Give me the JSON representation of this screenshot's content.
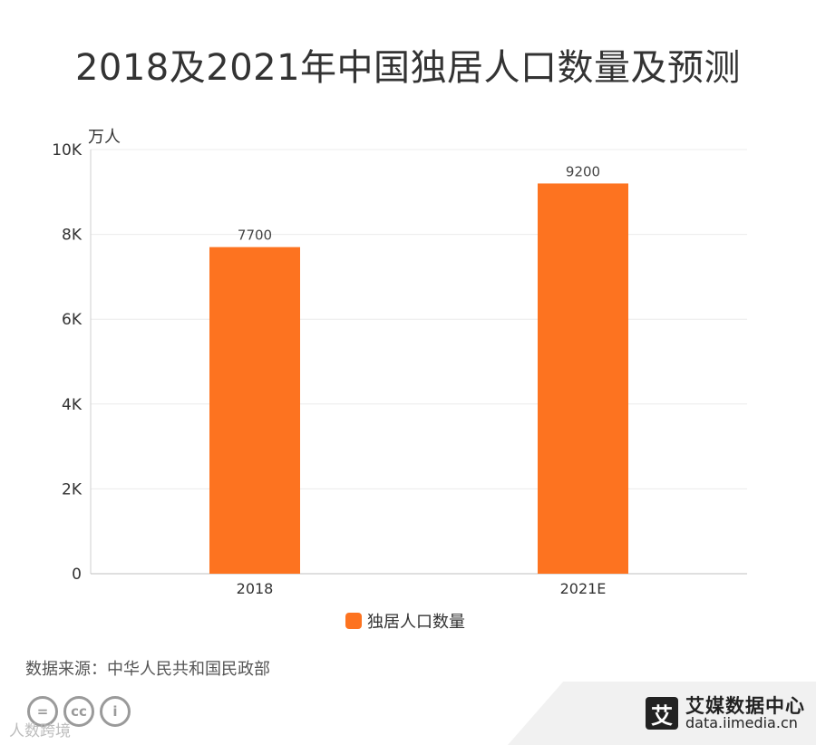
{
  "header": {
    "title": "2018及2021年中国独居人口数量及预测"
  },
  "chart_data": {
    "type": "bar",
    "categories": [
      "2018",
      "2021E"
    ],
    "series": [
      {
        "name": "独居人口数量",
        "values": [
          7700,
          9200
        ],
        "color": "#fd7320"
      }
    ],
    "data_labels": [
      "7700",
      "9200"
    ],
    "ylabel": "万人",
    "ylim": [
      0,
      10000
    ],
    "yticks": [
      0,
      2000,
      4000,
      6000,
      8000,
      10000
    ],
    "ytick_labels": [
      "0",
      "2K",
      "4K",
      "6K",
      "8K",
      "10K"
    ],
    "grid": true,
    "legend": "bottom-center"
  },
  "footer": {
    "source": "数据来源：中华人民共和国民政部",
    "cc_icons": [
      {
        "icon": "equals-icon",
        "text": "="
      },
      {
        "icon": "cc-icon",
        "text": "cc"
      },
      {
        "icon": "person-icon",
        "text": "i"
      }
    ],
    "watermark": "人数跨境",
    "brand_logo": "艾",
    "brand_name": "艾媒数据中心",
    "brand_url": "data.iimedia.cn"
  }
}
